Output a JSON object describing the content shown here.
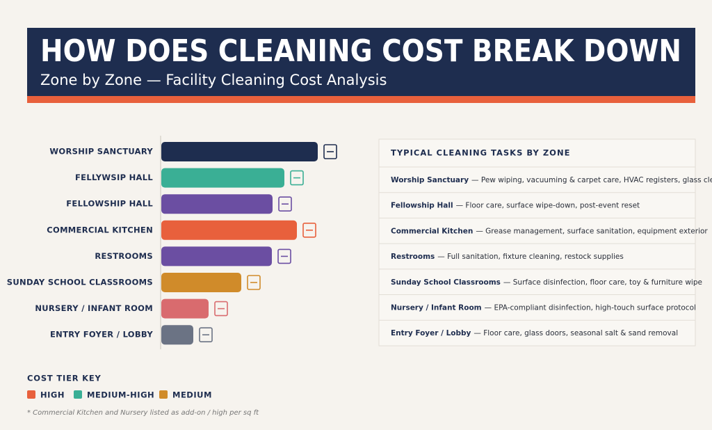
{
  "header": {
    "title": "HOW DOES CLEANING COST BREAK DOWN",
    "subtitle": "Zone by Zone — Facility Cleaning Cost Analysis"
  },
  "chart_data": {
    "type": "bar",
    "orientation": "horizontal",
    "categories": [
      "WORSHIP SANCTUARY",
      "FELLYWSIP HALL",
      "FELLOWSHIP HALL",
      "COMMERCIAL KITCHEN",
      "RESTROOMS",
      "SUNDAY SCHOOL CLASSROOMS",
      "NURSERY / INFANT ROOM",
      "ENTRY FOYER / LOBBY"
    ],
    "values": [
      225,
      177,
      160,
      195,
      159,
      115,
      68,
      46
    ],
    "colors": [
      "#1e2d4f",
      "#3aaf95",
      "#6b4ea2",
      "#e8603c",
      "#6b4ea2",
      "#d08b2a",
      "#d96b6e",
      "#6b7384"
    ]
  },
  "tasks": {
    "title": "TYPICAL CLEANING TASKS BY ZONE",
    "rows": [
      {
        "zone": "Worship Sanctuary",
        "description": "— Pew wiping, vacuuming & carpet care, HVAC registers, glass cleaning"
      },
      {
        "zone": "Fellowship Hall",
        "description": "— Floor care, surface wipe-down, post-event reset"
      },
      {
        "zone": "Commercial Kitchen",
        "description": "— Grease management, surface sanitation, equipment exterior"
      },
      {
        "zone": "Restrooms",
        "description": "— Full sanitation, fixture cleaning, restock supplies"
      },
      {
        "zone": "Sunday School Classrooms",
        "description": "— Surface disinfection, floor care, toy & furniture wipe"
      },
      {
        "zone": "Nursery / Infant Room",
        "description": "— EPA-compliant disinfection, high-touch surface protocol"
      },
      {
        "zone": "Entry Foyer / Lobby",
        "description": "— Floor care, glass doors, seasonal salt & sand removal"
      }
    ]
  },
  "legend": {
    "title": "COST TIER KEY",
    "items": [
      {
        "label": "HIGH",
        "color": "#e8603c"
      },
      {
        "label": "MEDIUM-HIGH",
        "color": "#3aaf95"
      },
      {
        "label": "MEDIUM",
        "color": "#d08b2a"
      }
    ]
  },
  "note": "* Commercial Kitchen and Nursery listed as add-on / high per sq ft"
}
